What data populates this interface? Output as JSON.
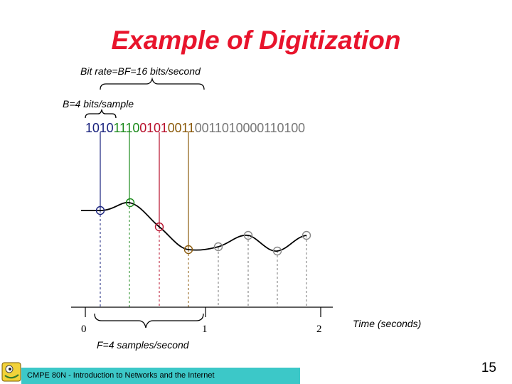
{
  "title": "Example of Digitization",
  "bit_rate_label": "Bit rate=BF=16 bits/second",
  "bits_per_sample_label": "B=4 bits/sample",
  "samples": [
    {
      "bits": "1010",
      "color": "#1a237e"
    },
    {
      "bits": "1110",
      "color": "#1b8a1b"
    },
    {
      "bits": "0101",
      "color": "#b8102c"
    },
    {
      "bits": "0011",
      "color": "#8b5a0b"
    },
    {
      "bits": "0011",
      "color": "#777777"
    },
    {
      "bits": "0100",
      "color": "#777777"
    },
    {
      "bits": "0011",
      "color": "#777777"
    },
    {
      "bits": "0100",
      "color": "#777777"
    }
  ],
  "axis": {
    "tick_0": "0",
    "tick_1": "1",
    "tick_2": "2",
    "time_label": "Time (seconds)"
  },
  "sample_rate_label": "F=4 samples/second",
  "footer": {
    "course": "CMPE 80N - Introduction to Networks and the Internet",
    "page": "15",
    "bar_color": "#3cc8c8"
  },
  "title_color": "#e8142c",
  "icons": [
    "course-logo-icon"
  ]
}
